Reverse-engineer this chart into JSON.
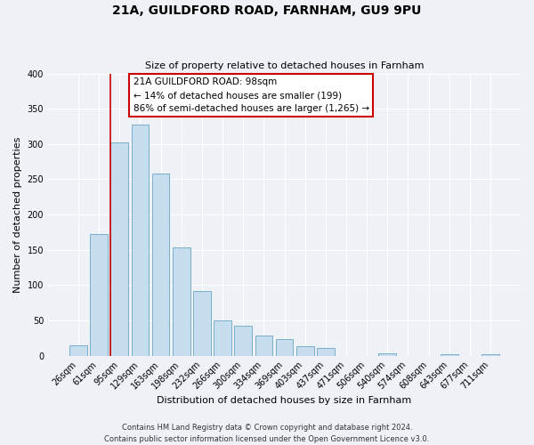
{
  "title": "21A, GUILDFORD ROAD, FARNHAM, GU9 9PU",
  "subtitle": "Size of property relative to detached houses in Farnham",
  "xlabel": "Distribution of detached houses by size in Farnham",
  "ylabel": "Number of detached properties",
  "bar_labels": [
    "26sqm",
    "61sqm",
    "95sqm",
    "129sqm",
    "163sqm",
    "198sqm",
    "232sqm",
    "266sqm",
    "300sqm",
    "334sqm",
    "369sqm",
    "403sqm",
    "437sqm",
    "471sqm",
    "506sqm",
    "540sqm",
    "574sqm",
    "608sqm",
    "643sqm",
    "677sqm",
    "711sqm"
  ],
  "bar_values": [
    15,
    172,
    302,
    328,
    258,
    153,
    92,
    50,
    43,
    29,
    23,
    13,
    11,
    0,
    0,
    3,
    0,
    0,
    2,
    0,
    2
  ],
  "bar_color": "#c5ddef",
  "bar_edge_color": "#7aafc8",
  "highlight_bar_idx": 2,
  "highlight_color": "#cc0000",
  "annotation_title": "21A GUILDFORD ROAD: 98sqm",
  "annotation_line1": "← 14% of detached houses are smaller (199)",
  "annotation_line2": "86% of semi-detached houses are larger (1,265) →",
  "annotation_box_color": "#ffffff",
  "annotation_box_edge": "#cc0000",
  "ylim": [
    0,
    400
  ],
  "yticks": [
    0,
    50,
    100,
    150,
    200,
    250,
    300,
    350,
    400
  ],
  "footer1": "Contains HM Land Registry data © Crown copyright and database right 2024.",
  "footer2": "Contains public sector information licensed under the Open Government Licence v3.0.",
  "bg_color": "#eef2f7",
  "plot_bg_color": "#eef2f7",
  "grid_color": "#ffffff",
  "title_fontsize": 10,
  "subtitle_fontsize": 8,
  "tick_fontsize": 7,
  "axis_label_fontsize": 8,
  "footer_fontsize": 6
}
